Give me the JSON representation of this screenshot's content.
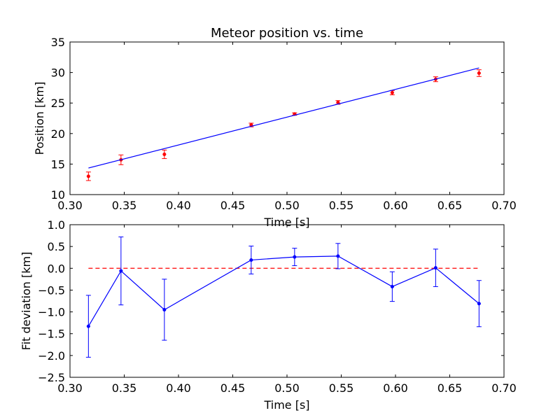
{
  "chart_data": [
    {
      "type": "scatter",
      "title": "Meteor position vs. time",
      "xlabel": "Time [s]",
      "ylabel": "Position [km]",
      "xlim": [
        0.3,
        0.7
      ],
      "ylim": [
        10,
        35
      ],
      "xticks": [
        "0.30",
        "0.35",
        "0.40",
        "0.45",
        "0.50",
        "0.55",
        "0.60",
        "0.65",
        "0.70"
      ],
      "yticks": [
        "10",
        "15",
        "20",
        "25",
        "30",
        "35"
      ],
      "grid": false,
      "series": [
        {
          "kind": "errorbar-points",
          "color": "#ff0000",
          "points": [
            {
              "x": 0.317,
              "y": 13.0,
              "err": 0.7
            },
            {
              "x": 0.347,
              "y": 15.7,
              "err": 0.8
            },
            {
              "x": 0.387,
              "y": 16.6,
              "err": 0.7
            },
            {
              "x": 0.467,
              "y": 21.4,
              "err": 0.3
            },
            {
              "x": 0.507,
              "y": 23.2,
              "err": 0.2
            },
            {
              "x": 0.547,
              "y": 25.1,
              "err": 0.3
            },
            {
              "x": 0.597,
              "y": 26.7,
              "err": 0.35
            },
            {
              "x": 0.637,
              "y": 28.9,
              "err": 0.4
            },
            {
              "x": 0.677,
              "y": 29.9,
              "err": 0.55
            }
          ]
        },
        {
          "kind": "fit-line",
          "color": "#0000ff",
          "points": [
            {
              "x": 0.317,
              "y": 14.35
            },
            {
              "x": 0.677,
              "y": 30.75
            }
          ]
        }
      ]
    },
    {
      "type": "line",
      "xlabel": "Time [s]",
      "ylabel": "Fit deviation [km]",
      "xlim": [
        0.3,
        0.7
      ],
      "ylim": [
        -2.5,
        1.0
      ],
      "xticks": [
        "0.30",
        "0.35",
        "0.40",
        "0.45",
        "0.50",
        "0.55",
        "0.60",
        "0.65",
        "0.70"
      ],
      "yticks": [
        "−2.5",
        "−2.0",
        "−1.5",
        "−1.0",
        "−0.5",
        "0.0",
        "0.5",
        "1.0"
      ],
      "grid": false,
      "reference_line": {
        "y": 0.0,
        "color": "#ff0000",
        "style": "dashed",
        "x": [
          0.317,
          0.677
        ]
      },
      "series": [
        {
          "kind": "errorbar-line",
          "color": "#0000ff",
          "points": [
            {
              "x": 0.317,
              "y": -1.33,
              "err": 0.71
            },
            {
              "x": 0.347,
              "y": -0.06,
              "err": 0.78
            },
            {
              "x": 0.387,
              "y": -0.95,
              "err": 0.7
            },
            {
              "x": 0.467,
              "y": 0.19,
              "err": 0.32
            },
            {
              "x": 0.507,
              "y": 0.26,
              "err": 0.2
            },
            {
              "x": 0.547,
              "y": 0.28,
              "err": 0.29
            },
            {
              "x": 0.597,
              "y": -0.42,
              "err": 0.34
            },
            {
              "x": 0.637,
              "y": 0.01,
              "err": 0.43
            },
            {
              "x": 0.677,
              "y": -0.81,
              "err": 0.53
            }
          ]
        }
      ]
    }
  ]
}
